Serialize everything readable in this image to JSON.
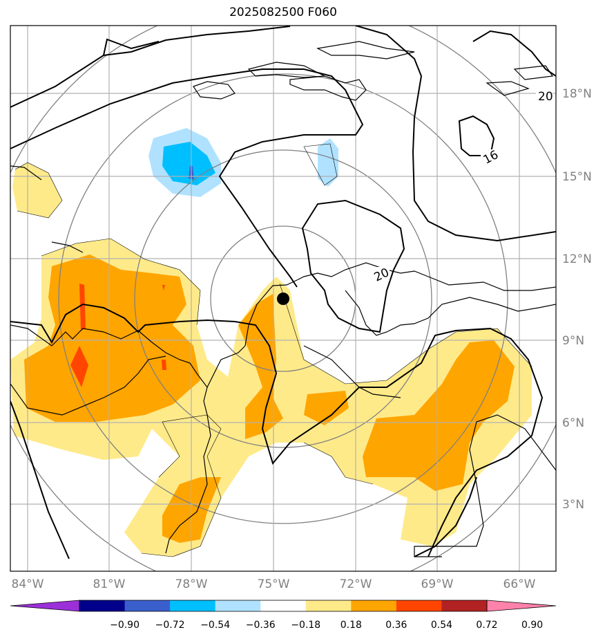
{
  "title": "2025082500 F060",
  "map": {
    "lon_ticks": [
      "84°W",
      "81°W",
      "78°W",
      "75°W",
      "72°W",
      "69°W",
      "66°W"
    ],
    "lat_ticks": [
      "18°N",
      "15°N",
      "12°N",
      "9°N",
      "6°N",
      "3°N"
    ],
    "contour_labels": [
      "20",
      "16",
      "20"
    ],
    "center_marker": "storm-center-dot"
  },
  "colorbar": {
    "labels": [
      "−0.90",
      "−0.72",
      "−0.54",
      "−0.36",
      "−0.18",
      "0.18",
      "0.36",
      "0.54",
      "0.72",
      "0.90"
    ],
    "colors": [
      "#9b30d9",
      "#00008b",
      "#3a5fcd",
      "#00bfff",
      "#b0e2ff",
      "#ffffff",
      "#ffea8a",
      "#ffa500",
      "#ff4500",
      "#b22222",
      "#ff82ab"
    ]
  }
}
